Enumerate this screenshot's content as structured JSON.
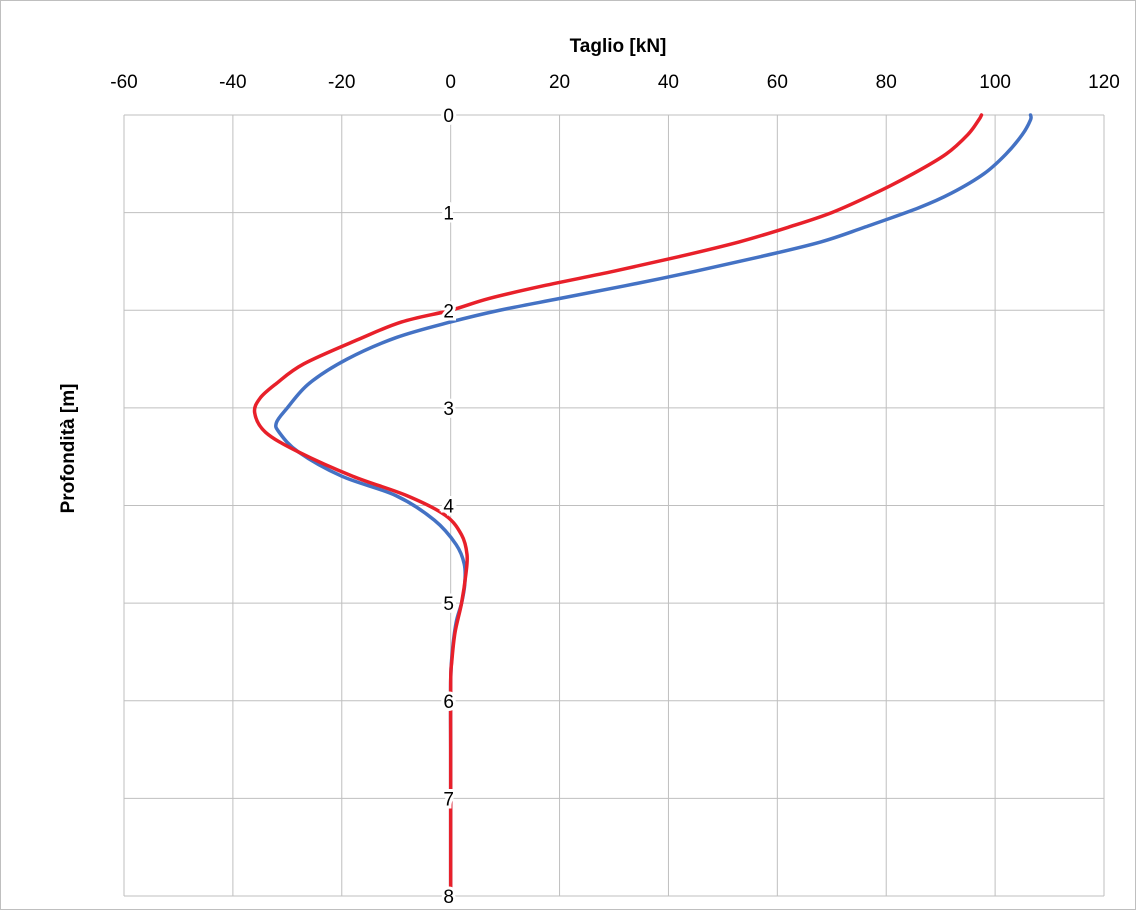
{
  "chart_data": {
    "type": "line",
    "title": "",
    "xlabel": "Taglio [kN]",
    "ylabel": "Profondità [m]",
    "xlim": [
      -60,
      120
    ],
    "ylim": [
      0,
      8
    ],
    "y_inverted": true,
    "x_axis_position": "top",
    "grid": true,
    "legend": "none",
    "x_ticks": [
      -60,
      -40,
      -20,
      0,
      20,
      40,
      60,
      80,
      100,
      120
    ],
    "y_ticks": [
      0,
      1,
      2,
      3,
      4,
      5,
      6,
      7,
      8
    ],
    "series": [
      {
        "color": "#4472c4",
        "points": [
          [
            106.5,
            0.0
          ],
          [
            106.5,
            0.05
          ],
          [
            105,
            0.2
          ],
          [
            102,
            0.4
          ],
          [
            98,
            0.6
          ],
          [
            92,
            0.8
          ],
          [
            86,
            0.95
          ],
          [
            76,
            1.15
          ],
          [
            68,
            1.3
          ],
          [
            57,
            1.45
          ],
          [
            45,
            1.6
          ],
          [
            32,
            1.75
          ],
          [
            20,
            1.88
          ],
          [
            9,
            2.0
          ],
          [
            0,
            2.12
          ],
          [
            -10,
            2.28
          ],
          [
            -19,
            2.5
          ],
          [
            -26,
            2.75
          ],
          [
            -30,
            3.0
          ],
          [
            -32,
            3.15
          ],
          [
            -31.5,
            3.25
          ],
          [
            -28,
            3.45
          ],
          [
            -20,
            3.7
          ],
          [
            -10,
            3.9
          ],
          [
            -3,
            4.15
          ],
          [
            1,
            4.4
          ],
          [
            2.5,
            4.6
          ],
          [
            2.6,
            4.8
          ],
          [
            2,
            5.0
          ],
          [
            1,
            5.2
          ],
          [
            0.3,
            5.5
          ],
          [
            0,
            5.8
          ],
          [
            0,
            6.5
          ],
          [
            0,
            7.0
          ],
          [
            0,
            8.0
          ]
        ]
      },
      {
        "color": "#e8202a",
        "points": [
          [
            97.5,
            0.0
          ],
          [
            97,
            0.05
          ],
          [
            95,
            0.2
          ],
          [
            91,
            0.4
          ],
          [
            85,
            0.6
          ],
          [
            78,
            0.8
          ],
          [
            70,
            1.0
          ],
          [
            62,
            1.15
          ],
          [
            53,
            1.3
          ],
          [
            42,
            1.45
          ],
          [
            30,
            1.6
          ],
          [
            17,
            1.75
          ],
          [
            7,
            1.88
          ],
          [
            0,
            2.0
          ],
          [
            -9,
            2.12
          ],
          [
            -17,
            2.3
          ],
          [
            -27,
            2.55
          ],
          [
            -32,
            2.75
          ],
          [
            -35,
            2.9
          ],
          [
            -36,
            3.05
          ],
          [
            -34,
            3.25
          ],
          [
            -28,
            3.45
          ],
          [
            -18,
            3.7
          ],
          [
            -8,
            3.9
          ],
          [
            -1,
            4.1
          ],
          [
            2,
            4.3
          ],
          [
            3,
            4.5
          ],
          [
            2.8,
            4.7
          ],
          [
            2,
            5.0
          ],
          [
            0.8,
            5.3
          ],
          [
            0.2,
            5.6
          ],
          [
            0,
            5.8
          ],
          [
            0,
            6.5
          ],
          [
            0,
            7.0
          ],
          [
            0,
            8.0
          ]
        ]
      }
    ]
  }
}
